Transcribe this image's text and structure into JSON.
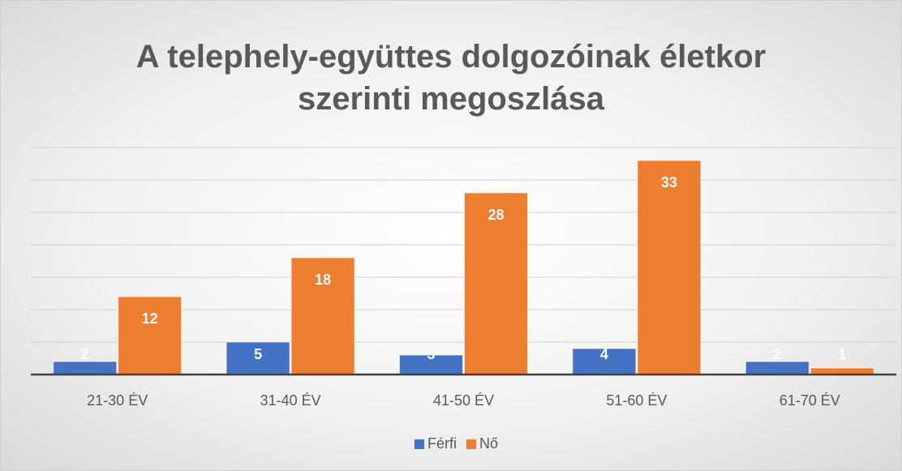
{
  "chart_data": {
    "type": "bar",
    "title": "A telephely-együttes dolgozóinak életkor szerinti megoszlása",
    "categories": [
      "21-30 ÉV",
      "31-40 ÉV",
      "41-50 ÉV",
      "51-60 ÉV",
      "61-70 ÉV"
    ],
    "series": [
      {
        "name": "Férfi",
        "color": "#4472c4",
        "values": [
          2,
          5,
          3,
          4,
          2
        ]
      },
      {
        "name": "Nő",
        "color": "#ed7d31",
        "values": [
          12,
          18,
          28,
          33,
          1
        ]
      }
    ],
    "ylim": [
      0,
      35
    ],
    "yticks": [
      0,
      5,
      10,
      15,
      20,
      25,
      30,
      35
    ],
    "grid": true,
    "legend": "bottom"
  }
}
